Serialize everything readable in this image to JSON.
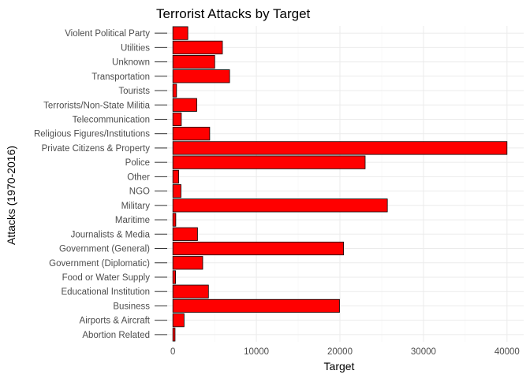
{
  "chart_data": {
    "type": "bar",
    "orientation": "horizontal",
    "title": "Terrorist Attacks by Target",
    "xlabel": "Target",
    "ylabel": "Attacks (1970-2016)",
    "categories": [
      "Abortion Related",
      "Airports & Aircraft",
      "Business",
      "Educational Institution",
      "Food or Water Supply",
      "Government (Diplomatic)",
      "Government (General)",
      "Journalists & Media",
      "Maritime",
      "Military",
      "NGO",
      "Other",
      "Police",
      "Private Citizens & Property",
      "Religious Figures/Institutions",
      "Telecommunication",
      "Terrorists/Non-State Militia",
      "Tourists",
      "Transportation",
      "Unknown",
      "Utilities",
      "Violent Political Party"
    ],
    "values": [
      260,
      1340,
      19950,
      4260,
      320,
      3570,
      20430,
      2950,
      350,
      25680,
      970,
      690,
      23020,
      40000,
      4410,
      1010,
      2860,
      440,
      6790,
      5010,
      5930,
      1790
    ],
    "xlim": [
      -2000,
      42000
    ],
    "xticks": [
      0,
      10000,
      20000,
      30000,
      40000
    ],
    "xtick_labels": [
      "0",
      "10000",
      "20000",
      "30000",
      "40000"
    ],
    "grid": true,
    "bar_color": "#FF0000",
    "bar_outline": "#000000"
  }
}
